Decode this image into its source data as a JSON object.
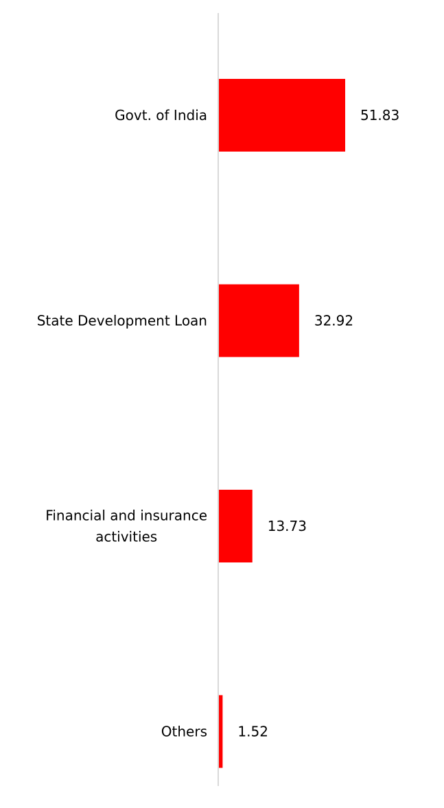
{
  "chart_data": {
    "type": "bar",
    "orientation": "horizontal",
    "categories": [
      [
        "Govt. of India"
      ],
      [
        "State Development Loan"
      ],
      [
        "Financial and insurance",
        "activities"
      ],
      [
        "Others"
      ]
    ],
    "values": [
      51.83,
      32.92,
      13.73,
      1.52
    ],
    "value_labels": [
      "51.83",
      "32.92",
      "13.73",
      "1.52"
    ],
    "xlim": [
      0,
      100
    ],
    "grid": false,
    "legend": "none",
    "title": "",
    "xlabel": "",
    "ylabel": ""
  },
  "colors": {
    "bar": "#ff0000",
    "axis": "#d9d9d9",
    "text": "#000000"
  }
}
